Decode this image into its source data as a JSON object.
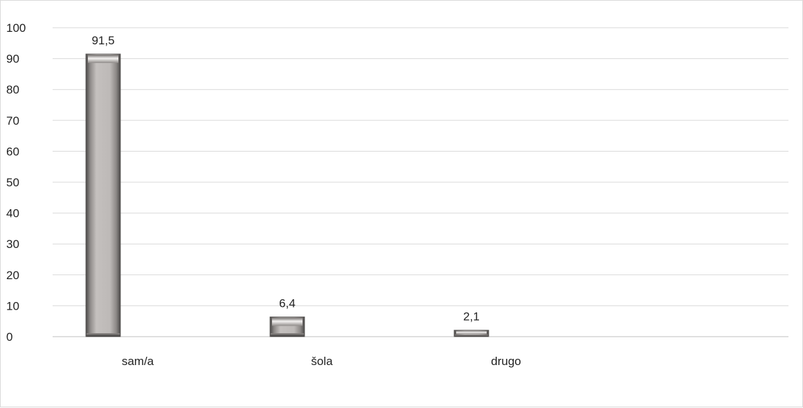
{
  "chart_data": {
    "type": "bar",
    "categories": [
      "sam/a",
      "šola",
      "drugo"
    ],
    "values": [
      91.5,
      6.4,
      2.1
    ],
    "value_labels": [
      "91,5",
      "6,4",
      "2,1"
    ],
    "yticks": [
      "0",
      "10",
      "20",
      "30",
      "40",
      "50",
      "60",
      "70",
      "80",
      "90",
      "100"
    ],
    "ylim": [
      0,
      100
    ],
    "grid": true,
    "legend": "none",
    "title": "",
    "xlabel": "",
    "ylabel": "",
    "colors": {
      "bar": "#a8a4a2",
      "bar_dark": "#6e6a68",
      "grid": "#d9d9d9",
      "axis": "#bfbfbf",
      "text": "#222222"
    }
  }
}
